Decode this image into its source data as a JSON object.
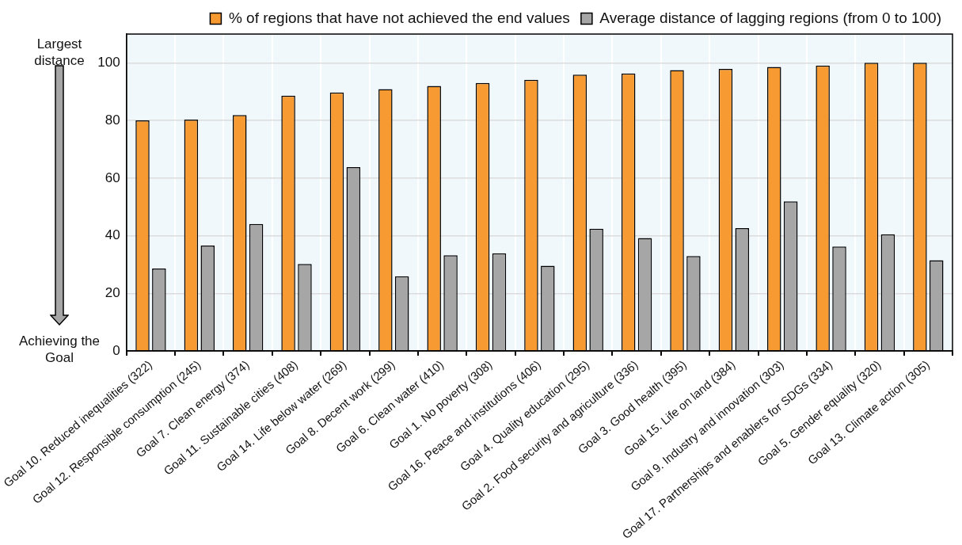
{
  "chart_data": {
    "type": "bar",
    "categories": [
      "Goal 10. Reduced inequalities (322)",
      "Goal 12. Responsible consumption (245)",
      "Goal 7. Clean energy (374)",
      "Goal 11. Sustainable cities (408)",
      "Goal 14. Life below water (269)",
      "Goal 8. Decent work (299)",
      "Goal 6. Clean water (410)",
      "Goal 1. No poverty (308)",
      "Goal 16. Peace and institutions (406)",
      "Goal 4. Quality education (295)",
      "Goal 2. Food security and agriculture (336)",
      "Goal 3. Good health (395)",
      "Goal 15. Life on land (384)",
      "Goal 9. Industry and innovation (303)",
      "Goal 17. Partnerships and enablers for SDGs (334)",
      "Goal 5. Gender equality (320)",
      "Goal 13. Climate action (305)"
    ],
    "series": [
      {
        "name": "% of regions that have not achieved the end values",
        "color": "#f79a32",
        "values": [
          80.0,
          80.3,
          81.9,
          88.6,
          89.7,
          90.9,
          92.0,
          93.0,
          94.1,
          95.9,
          96.3,
          97.5,
          97.9,
          98.6,
          99.1,
          100,
          100
        ]
      },
      {
        "name": "Average distance of lagging regions (from 0 to 100)",
        "color": "#a6a6a6",
        "values": [
          28.6,
          36.6,
          44.1,
          30.2,
          63.8,
          25.9,
          33.2,
          33.9,
          29.6,
          42.4,
          39.2,
          32.9,
          42.6,
          51.9,
          36.2,
          40.5,
          31.5
        ]
      }
    ],
    "ylim": [
      0,
      110
    ],
    "yticks": [
      0,
      20,
      40,
      60,
      80,
      100
    ],
    "grid": true,
    "legend": "top",
    "annotations": [
      "Largest distance",
      "Achieving the Goal"
    ]
  }
}
